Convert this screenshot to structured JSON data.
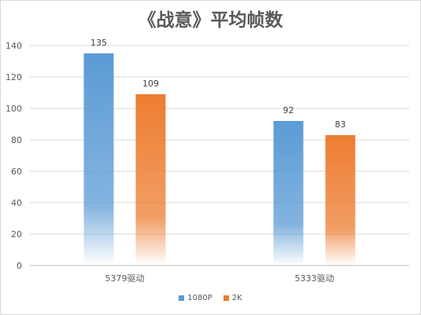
{
  "chart_data": {
    "type": "bar",
    "title": "《战意》平均帧数",
    "categories": [
      "5379驱动",
      "5333驱动"
    ],
    "series": [
      {
        "name": "1080P",
        "values": [
          135,
          92
        ],
        "color": "#5b9bd5"
      },
      {
        "name": "2K",
        "values": [
          109,
          83
        ],
        "color": "#ed7d31"
      }
    ],
    "y_ticks": [
      0,
      20,
      40,
      60,
      80,
      100,
      120,
      140
    ],
    "ylim": [
      0,
      140
    ],
    "grid": true,
    "legend_position": "bottom",
    "data_labels": true
  }
}
